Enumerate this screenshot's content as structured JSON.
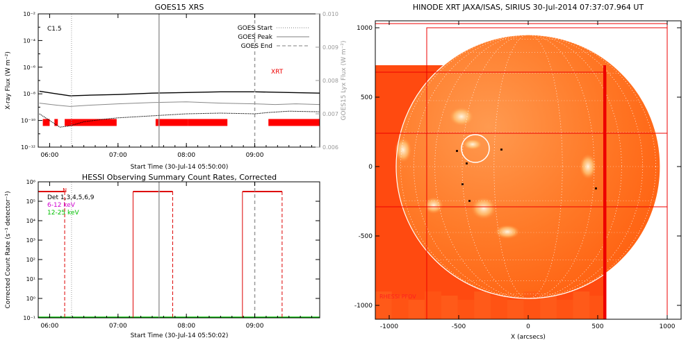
{
  "chart_data": [
    {
      "type": "line",
      "title": "GOES15 XRS",
      "xlabel": "Start Time (30-Jul-14 05:50:00)",
      "ylabel": "X-ray Flux (W m⁻²)",
      "ylabel_right": "GOES15 Lyx Flux (W m⁻²)",
      "x_ticks": [
        "06:00",
        "07:00",
        "08:00",
        "09:00"
      ],
      "x_tick_hours": [
        6,
        7,
        8,
        9
      ],
      "xlim_hours": [
        5.833,
        9.95
      ],
      "y_log_range": [
        -12,
        -2
      ],
      "y_ticks": [
        "10⁻¹²",
        "10⁻¹⁰",
        "10⁻⁸",
        "10⁻⁶",
        "10⁻⁴",
        "10⁻²"
      ],
      "y_right_range": [
        0.006,
        0.01
      ],
      "y_right_ticks": [
        "0.006",
        "0.007",
        "0.008",
        "0.009",
        "0.010"
      ],
      "annotation": "C1.5",
      "xrs_label": "XRT",
      "legend": {
        "placement": "top-right",
        "entries": [
          {
            "name": "GOES Start",
            "style": "dotted",
            "color": "#999999"
          },
          {
            "name": "GOES Peak",
            "style": "solid",
            "color": "#999999"
          },
          {
            "name": "GOES End",
            "style": "dashed",
            "color": "#999999"
          }
        ]
      },
      "markers_hours": {
        "start": 6.32,
        "peak": 7.6,
        "end": 9.0
      },
      "series": [
        {
          "color": "#000000",
          "points": [
            [
              5.85,
              -7.8
            ],
            [
              6.1,
              -8.0
            ],
            [
              6.3,
              -8.15
            ],
            [
              6.6,
              -8.1
            ],
            [
              7.0,
              -8.05
            ],
            [
              7.5,
              -7.95
            ],
            [
              8.0,
              -7.9
            ],
            [
              8.5,
              -7.85
            ],
            [
              9.0,
              -7.85
            ],
            [
              9.5,
              -7.9
            ],
            [
              9.95,
              -7.95
            ]
          ]
        },
        {
          "color": "#888888",
          "points": [
            [
              5.85,
              -8.7
            ],
            [
              6.1,
              -8.85
            ],
            [
              6.3,
              -8.95
            ],
            [
              6.6,
              -8.85
            ],
            [
              7.0,
              -8.75
            ],
            [
              7.5,
              -8.65
            ],
            [
              8.0,
              -8.6
            ],
            [
              8.5,
              -8.7
            ],
            [
              9.0,
              -8.75
            ],
            [
              9.3,
              -8.8
            ],
            [
              9.6,
              -8.75
            ],
            [
              9.95,
              -8.8
            ]
          ]
        },
        {
          "color": "#000000",
          "points": [
            [
              5.85,
              -9.5
            ],
            [
              6.0,
              -10.0
            ],
            [
              6.15,
              -10.5
            ],
            [
              6.3,
              -10.4
            ],
            [
              6.5,
              -10.1
            ],
            [
              6.8,
              -9.9
            ],
            [
              7.0,
              -9.8
            ],
            [
              7.5,
              -9.65
            ],
            [
              8.0,
              -9.5
            ],
            [
              8.5,
              -9.45
            ],
            [
              9.0,
              -9.5
            ],
            [
              9.2,
              -9.4
            ],
            [
              9.5,
              -9.3
            ],
            [
              9.95,
              -9.35
            ]
          ]
        }
      ],
      "coverage_bars_hours": [
        [
          5.9,
          6.0
        ],
        [
          6.07,
          6.12
        ],
        [
          6.22,
          6.98
        ],
        [
          7.55,
          8.02
        ],
        [
          8.02,
          8.6
        ],
        [
          9.2,
          9.95
        ]
      ]
    },
    {
      "type": "line",
      "title": "HESSI Observing Summary Count Rates, Corrected",
      "xlabel": "Start Time (30-Jul-14 05:50:02)",
      "ylabel": "Corrected Count Rate (s⁻¹ detector⁻¹)",
      "x_ticks": [
        "06:00",
        "07:00",
        "08:00",
        "09:00"
      ],
      "x_tick_hours": [
        6,
        7,
        8,
        9
      ],
      "xlim_hours": [
        5.833,
        9.95
      ],
      "y_log_range": [
        -1,
        6
      ],
      "y_ticks": [
        "10⁻¹",
        "10⁰",
        "10¹",
        "10²",
        "10³",
        "10⁴",
        "10⁵",
        "10⁶"
      ],
      "legend_entries": [
        {
          "name": "Det 1,3,4,5,6,9",
          "color": "#000000"
        },
        {
          "name": "6-12 keV",
          "color": "#d000d0"
        },
        {
          "name": "12-25 keV",
          "color": "#00c000"
        }
      ],
      "markers_hours": {
        "start": 6.32,
        "peak": 7.6,
        "end": 9.0
      },
      "red_dashed_hours": [
        6.22,
        7.8,
        9.4
      ],
      "red_solid_hours": [
        7.22,
        8.82
      ],
      "red_top_segments": [
        [
          5.833,
          6.22
        ],
        [
          7.22,
          7.8
        ],
        [
          8.82,
          9.4
        ]
      ],
      "top_segment_log": 5.5,
      "baseline_log": -1,
      "flag_label": "N"
    },
    {
      "type": "heatmap",
      "title": "HINODE XRT JAXA/ISAS, SIRIUS 30-Jul-2014 07:37:07.964 UT",
      "xlabel": "X (arcsecs)",
      "x_ticks": [
        "-1000",
        "-500",
        "0",
        "500",
        "1000"
      ],
      "x_tick_values": [
        -1000,
        -500,
        0,
        500,
        1000
      ],
      "y_ticks": [
        "-1000",
        "-500",
        "0",
        "500",
        "1000"
      ],
      "y_tick_values": [
        -1000,
        -500,
        0,
        500,
        1000
      ],
      "xlim": [
        -1100,
        1100
      ],
      "ylim": [
        -1100,
        1050
      ],
      "image_extent": {
        "x": [
          -1100,
          560
        ],
        "y": [
          -1100,
          730
        ]
      },
      "solar_disk_radius": 950,
      "highlight_circle": {
        "x": -380,
        "y": 130,
        "r": 100
      },
      "red_boxes": [
        {
          "x": [
            -1100,
            1000
          ],
          "y": [
            -1100,
            1030
          ]
        },
        {
          "x": [
            -730,
            1000
          ],
          "y": [
            -1100,
            1000
          ]
        },
        {
          "x": [
            -1100,
            560
          ],
          "y": [
            -1100,
            680
          ]
        }
      ],
      "red_hlines": [
        240,
        -290
      ],
      "corner_label": "RHESSI PFOV"
    }
  ]
}
